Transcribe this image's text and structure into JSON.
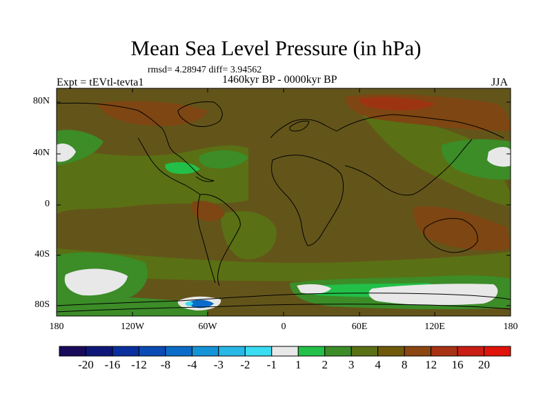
{
  "title": "Mean Sea Level Pressure (in hPa)",
  "stats": "rmsd= 4.28947 diff= 3.94562",
  "experiment": "Expt = tEVtl-tevta1",
  "period": "1460kyr BP - 0000kyr BP",
  "season": "JJA",
  "lat_labels": [
    "80N",
    "40N",
    "0",
    "40S",
    "80S"
  ],
  "lon_labels": [
    "180",
    "120W",
    "60W",
    "0",
    "60E",
    "120E",
    "180"
  ],
  "colorbar": {
    "labels": [
      "-20",
      "-16",
      "-12",
      "-8",
      "-4",
      "-3",
      "-2",
      "-1",
      "1",
      "2",
      "3",
      "4",
      "8",
      "12",
      "16",
      "20"
    ],
    "colors": [
      "#1a0a5a",
      "#0f1878",
      "#0a2f9e",
      "#0a4bb4",
      "#0a6cc8",
      "#1493d8",
      "#28b8e6",
      "#39dcf0",
      "#e8e8e8",
      "#22c048",
      "#3c8c28",
      "#5a7014",
      "#6e5a0a",
      "#8c4612",
      "#a83214",
      "#c81e14",
      "#e0140a"
    ]
  },
  "map_colors": {
    "background": "#63551a",
    "warm": "#7e4612",
    "hot": "#9c3412",
    "mid": "#5a7014",
    "green": "#3c8c28",
    "bright": "#22c048",
    "white": "#e8e8e8",
    "blue": "#0a6cc8",
    "cyan": "#39dcf0"
  }
}
